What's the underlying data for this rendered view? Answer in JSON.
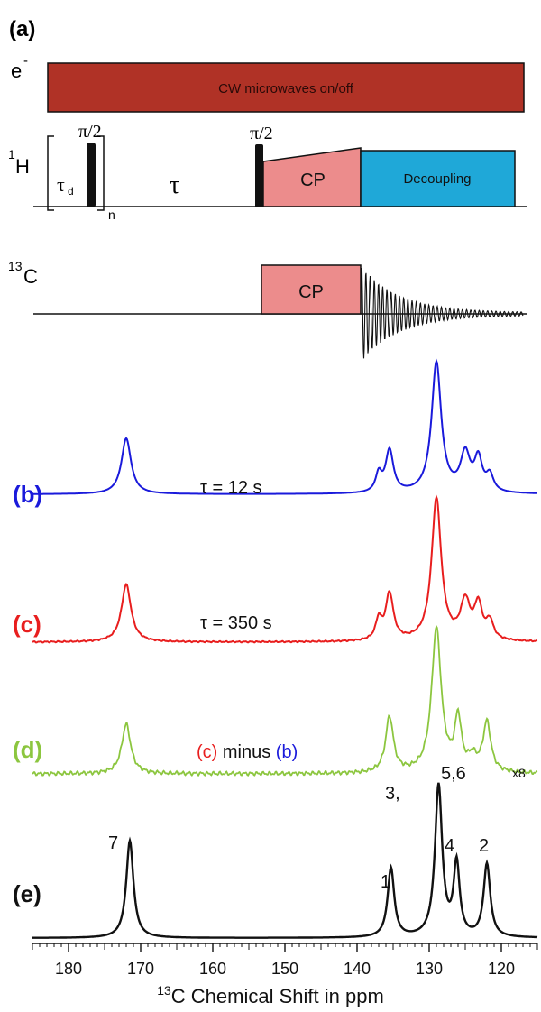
{
  "panel_a": {
    "label": "(a)",
    "electron": {
      "channel_label": "e",
      "channel_sup": "-",
      "block_label": "CW microwaves on/off",
      "color": "#b03226"
    },
    "proton": {
      "channel_sup": "1",
      "channel_label": "H",
      "tau_d_main": "τ",
      "tau_d_sub": "d",
      "pi2_label_1": "π/2",
      "repeat_label": "n",
      "tau_label": "τ",
      "pi2_label_2": "π/2",
      "cp_label": "CP",
      "cp_color": "#ec8c8c",
      "decoupling_label": "Decoupling",
      "decoupling_color": "#1fa8d8"
    },
    "carbon": {
      "channel_sup": "13",
      "channel_label": "C",
      "cp_label": "CP",
      "cp_color": "#ec8c8c"
    }
  },
  "spectra": [
    {
      "label": "(b)",
      "color": "#1a1adb",
      "annotation": "τ = 12 s"
    },
    {
      "label": "(c)",
      "color": "#e81e1e",
      "annotation": "τ = 350 s"
    },
    {
      "label": "(d)",
      "color": "#8cc63f",
      "annotation_c": "(c)",
      "annotation_minus": " minus ",
      "annotation_b": "(b)",
      "annotation_c_color": "#e81e1e",
      "annotation_b_color": "#1a1adb",
      "scale_label": "x8"
    },
    {
      "label": "(e)",
      "color": "#111111"
    }
  ],
  "peak_labels": [
    "7",
    "1",
    "3,",
    "5,6",
    "4",
    "2"
  ],
  "axis": {
    "xlabel_sup": "13",
    "xlabel": "C Chemical Shift in ppm",
    "ticks": [
      "180",
      "170",
      "160",
      "150",
      "140",
      "130",
      "120"
    ],
    "range_ppm": [
      185,
      115
    ],
    "reversed": true
  }
}
